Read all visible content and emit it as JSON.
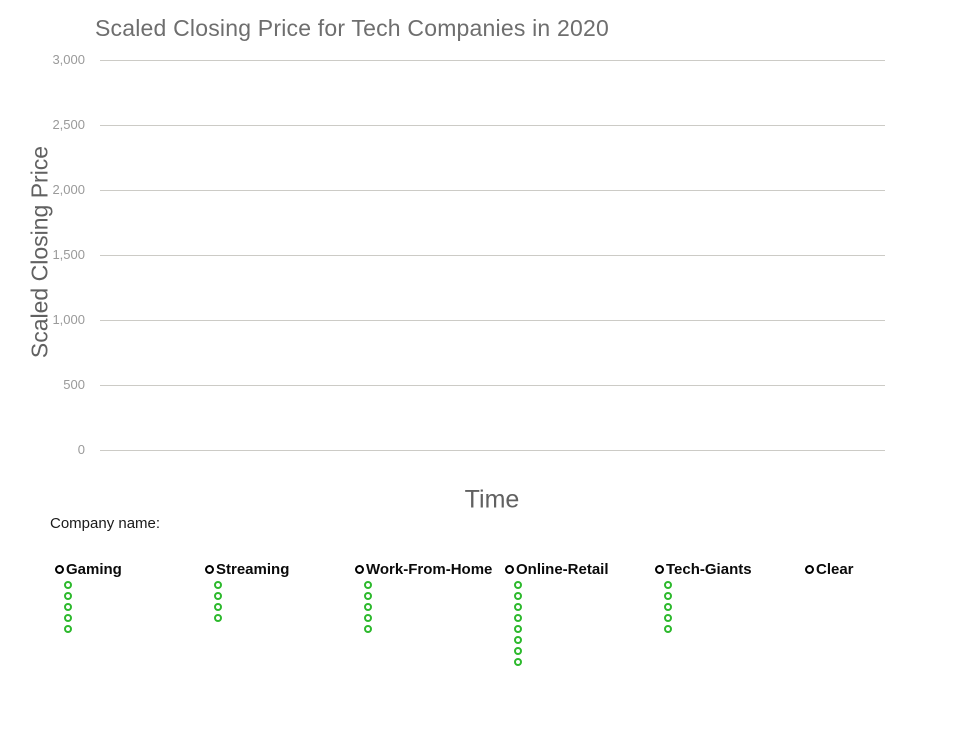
{
  "page": {
    "background": "#ffffff"
  },
  "chart_data": {
    "type": "line",
    "title": "Scaled Closing Price for Tech Companies in 2020",
    "xlabel": "Time",
    "ylabel": "Scaled Closing Price",
    "ylim": [
      0,
      3000
    ],
    "ytick_interval": 500,
    "yticks_display": [
      "3,000",
      "2,500",
      "2,000",
      "1,500",
      "1,000",
      "500",
      "0"
    ],
    "xticks": [],
    "grid": true,
    "legend": "none",
    "series": []
  },
  "controls": {
    "group_label": "Company name:",
    "accent_green": "#2db92d",
    "radio_ring_color": "#000000",
    "companies": [
      {
        "label": "Gaming",
        "option_dots": 5
      },
      {
        "label": "Streaming",
        "option_dots": 4
      },
      {
        "label": "Work-From-Home",
        "option_dots": 5
      },
      {
        "label": "Online-Retail",
        "option_dots": 8
      },
      {
        "label": "Tech-Giants",
        "option_dots": 5
      },
      {
        "label": "Clear",
        "option_dots": 0
      }
    ]
  }
}
